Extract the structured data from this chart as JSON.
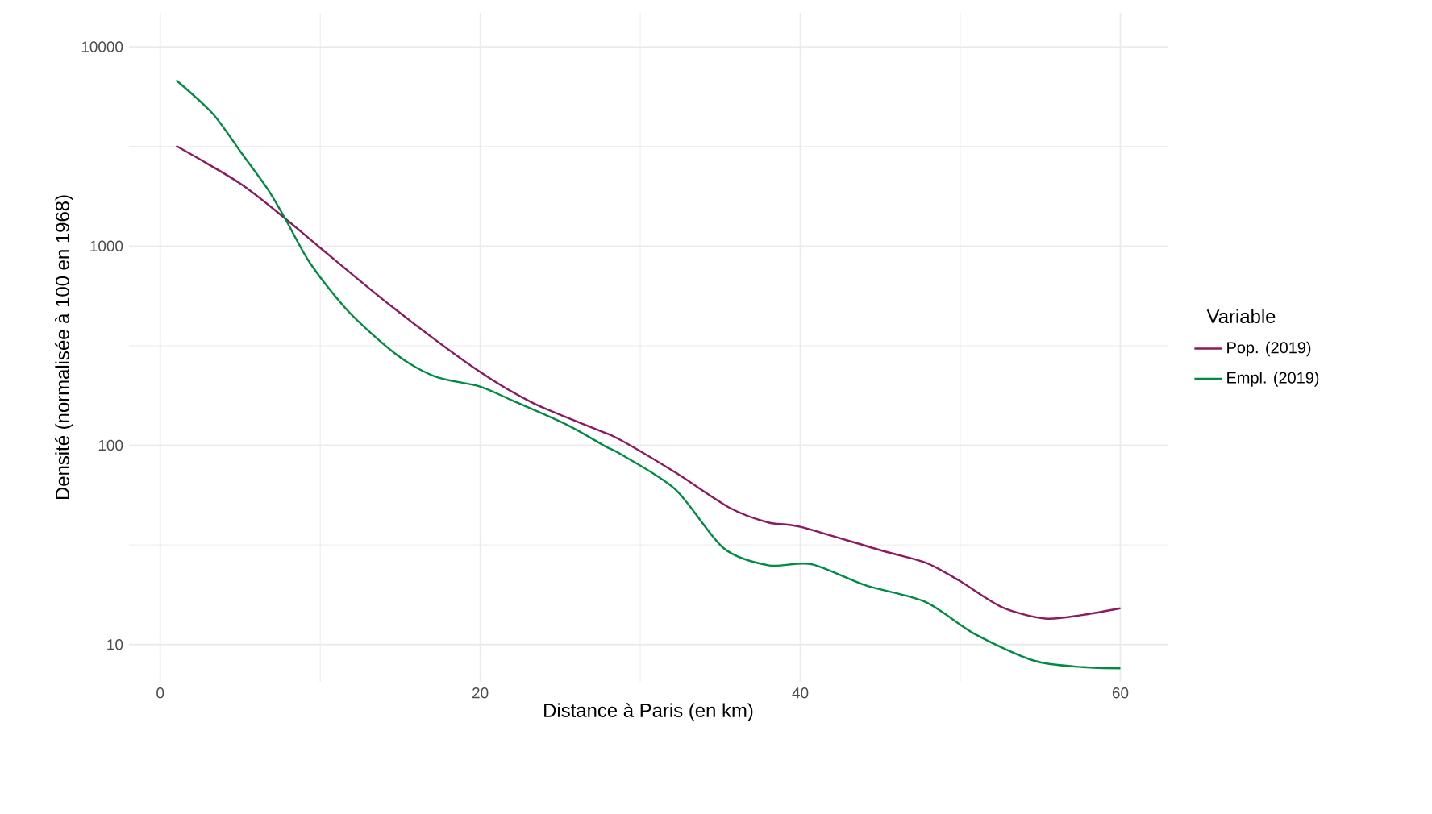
{
  "chart_data": {
    "type": "line",
    "xlabel": "Distance à Paris (en km)",
    "ylabel": "Densité (normalisée à 100 en 1968)",
    "legend_title": "Variable",
    "legend": "right",
    "grid": true,
    "log": "y",
    "xlim": [
      -1.95,
      62.95
    ],
    "xticks": [
      0,
      20,
      40,
      60
    ],
    "ylim": [
      6.5,
      14800
    ],
    "yticks": [
      10,
      100,
      1000,
      10000
    ],
    "series": [
      {
        "name": "Pop. (2019)",
        "color": "#8b1a5e",
        "x": [
          1,
          5,
          7.8,
          10,
          14.5,
          19.9,
          23.3,
          27.4,
          28.8,
          32.2,
          35.6,
          38,
          40,
          45.1,
          47.8,
          49.9,
          52.6,
          55.3,
          57.7,
          60
        ],
        "values": [
          3180,
          2060,
          1377,
          980,
          495,
          236,
          163,
          119,
          106,
          73,
          48.5,
          41,
          39,
          29.6,
          25.8,
          21,
          15.4,
          13.5,
          14.1,
          15.2
        ]
      },
      {
        "name": "Empl. (2019)",
        "color": "#008b45",
        "x": [
          1,
          3.3,
          5,
          6.7,
          7.8,
          9.4,
          11.8,
          14.8,
          17.2,
          19.9,
          22,
          25.4,
          27.8,
          28.8,
          32.2,
          35.2,
          38,
          40.7,
          44.1,
          47.8,
          50.9,
          54.6,
          57.7,
          60
        ],
        "values": [
          6800,
          4600,
          2990,
          1940,
          1377,
          813,
          466,
          284,
          221,
          198,
          168,
          127,
          99,
          90,
          60,
          30.5,
          25,
          25.3,
          19.8,
          16.4,
          11.3,
          8.3,
          7.7,
          7.6
        ]
      }
    ]
  }
}
